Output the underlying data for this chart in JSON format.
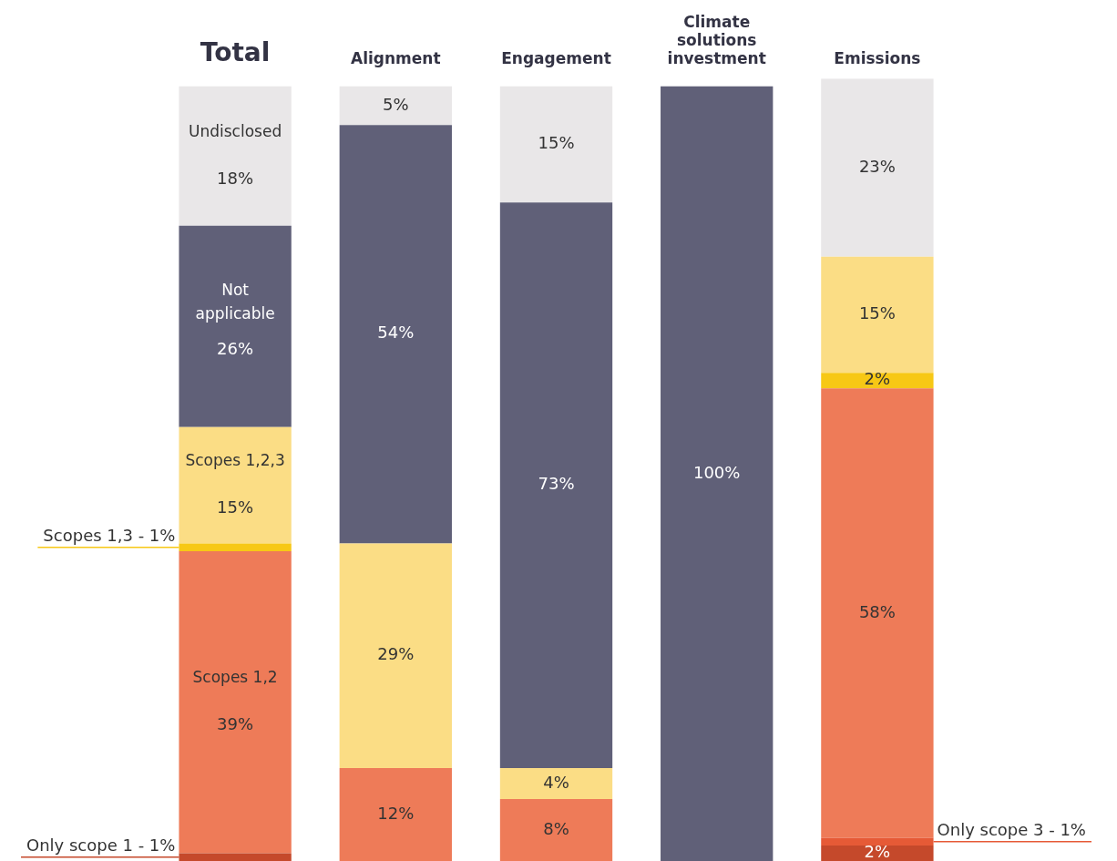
{
  "chart_data": {
    "type": "bar",
    "stacked": true,
    "legend": false,
    "grid": false,
    "categories": [
      "Total",
      "Alignment",
      "Engagement",
      "Climate solutions investment",
      "Emissions"
    ],
    "series": [
      {
        "name": "Only scope 1 -",
        "color": "#c5492b",
        "values": [
          1,
          null,
          null,
          null,
          2
        ],
        "value_labels": [
          "1%",
          null,
          null,
          null,
          "2%"
        ]
      },
      {
        "name": "Only scope 3 -",
        "color": "#e65a36",
        "values": [
          null,
          null,
          null,
          null,
          1
        ],
        "value_labels": [
          null,
          null,
          null,
          null,
          "1%"
        ]
      },
      {
        "name": "Scopes 1,2",
        "color": "#ee7b58",
        "values": [
          39,
          12,
          8,
          null,
          58
        ],
        "value_labels": [
          "39%",
          "12%",
          "8%",
          null,
          "58%"
        ]
      },
      {
        "name": "Scopes 1,3 -",
        "color": "#f7c815",
        "values": [
          1,
          null,
          null,
          null,
          2
        ],
        "value_labels": [
          "1%",
          null,
          null,
          null,
          "2%"
        ]
      },
      {
        "name": "Scopes 1,2,3",
        "color": "#fbdd85",
        "values": [
          15,
          29,
          4,
          null,
          15
        ],
        "value_labels": [
          "15%",
          "29%",
          "4%",
          null,
          "15%"
        ]
      },
      {
        "name": "Not applicable",
        "color": "#606078",
        "values": [
          26,
          54,
          73,
          100,
          null
        ],
        "value_labels": [
          "26%",
          "54%",
          "73%",
          "100%",
          null
        ]
      },
      {
        "name": "Undisclosed",
        "color": "#e9e7e8",
        "values": [
          18,
          5,
          15,
          null,
          23
        ],
        "value_labels": [
          "18%",
          "5%",
          "15%",
          null,
          "23%"
        ]
      }
    ]
  }
}
